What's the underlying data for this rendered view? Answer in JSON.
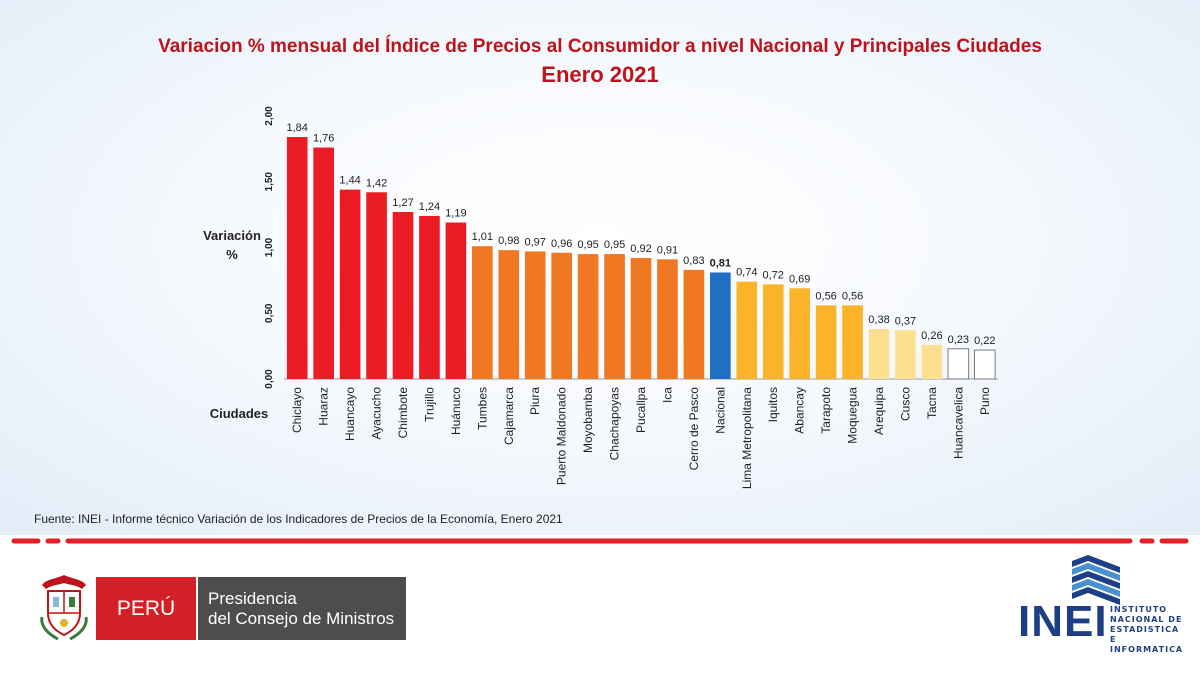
{
  "title_line1": "Variacion % mensual del Índice de Precios al Consumidor a nivel Nacional y Principales Ciudades",
  "title_line2": "Enero 2021",
  "source": "Fuente: INEI - Informe técnico Variación de los Indicadores de Precios de la Economía, Enero 2021",
  "chart_data": {
    "type": "bar",
    "title": "Variacion % mensual del Índice de Precios al Consumidor a nivel Nacional y Principales Ciudades",
    "subtitle": "Enero 2021",
    "ylabel": [
      "Variación",
      "%"
    ],
    "xlabel": "Ciudades",
    "ylim": [
      0,
      2
    ],
    "yticks": [
      "0,00",
      "0,50",
      "1,00",
      "1,50",
      "2,00"
    ],
    "ytick_values": [
      0,
      0.5,
      1,
      1.5,
      2
    ],
    "categories": [
      "Chiclayo",
      "Huaraz",
      "Huancayo",
      "Ayacucho",
      "Chimbote",
      "Trujillo",
      "Huánuco",
      "Tumbes",
      "Cajamarca",
      "Piura",
      "Puerto Maldonado",
      "Moyobamba",
      "Chachapoyas",
      "Pucallpa",
      "Ica",
      "Cerro de Pasco",
      "Nacional",
      "Lima Metropolitana",
      "Iquitos",
      "Abancay",
      "Tarapoto",
      "Moquegua",
      "Arequipa",
      "Cusco",
      "Tacna",
      "Huancavelica",
      "Puno"
    ],
    "values": [
      1.84,
      1.76,
      1.44,
      1.42,
      1.27,
      1.24,
      1.19,
      1.01,
      0.98,
      0.97,
      0.96,
      0.95,
      0.95,
      0.92,
      0.91,
      0.83,
      0.81,
      0.74,
      0.72,
      0.69,
      0.56,
      0.56,
      0.38,
      0.37,
      0.26,
      0.23,
      0.22
    ],
    "value_labels": [
      "1,84",
      "1,76",
      "1,44",
      "1,42",
      "1,27",
      "1,24",
      "1,19",
      "1,01",
      "0,98",
      "0,97",
      "0,96",
      "0,95",
      "0,95",
      "0,92",
      "0,91",
      "0,83",
      "0,81",
      "0,74",
      "0,72",
      "0,69",
      "0,56",
      "0,56",
      "0,38",
      "0,37",
      "0,26",
      "0,23",
      "0,22"
    ],
    "highlight": "Nacional",
    "color_groups": [
      {
        "max_index": 6,
        "color": "#ec1c24"
      },
      {
        "max_index": 15,
        "color": "#f07823"
      },
      {
        "max_index": 16,
        "color": "#1f6fc5"
      },
      {
        "max_index": 21,
        "color": "#fbb42a"
      },
      {
        "max_index": 24,
        "color": "#fde08f"
      },
      {
        "max_index": 26,
        "color": "#ffffff"
      }
    ]
  },
  "logos": {
    "peru_label": "PERÚ",
    "pcm_line1": "Presidencia",
    "pcm_line2": "del Consejo de Ministros",
    "inei_label": "INEI",
    "inei_sub": [
      "INSTITUTO",
      "NACIONAL DE",
      "ESTADISTICA E",
      "INFORMATICA"
    ]
  },
  "colors": {
    "title": "#c0121b",
    "divider": "#e31e24",
    "inei_blue": "#1f3f84",
    "peru_red": "#d51f26"
  }
}
